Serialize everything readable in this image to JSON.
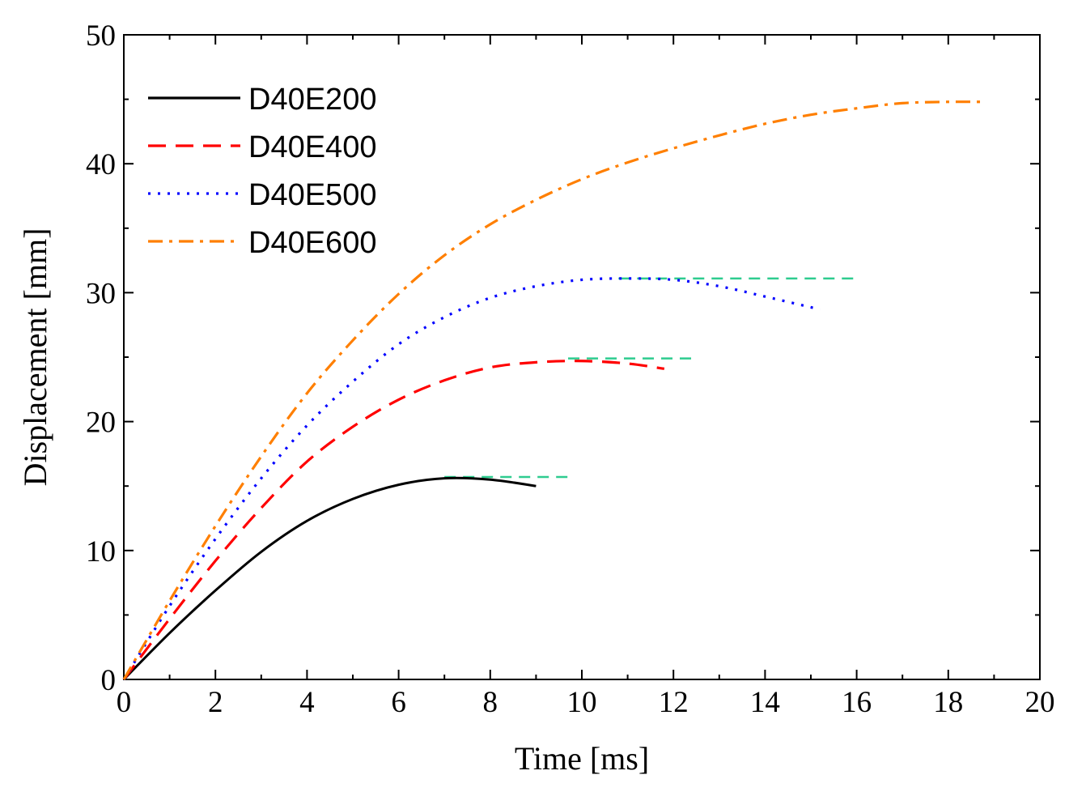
{
  "chart_data": {
    "type": "line",
    "title": "",
    "xlabel": "Time [ms]",
    "ylabel": "Displacement [mm]",
    "xlim": [
      0,
      20
    ],
    "ylim": [
      0,
      50
    ],
    "x_ticks": [
      "0",
      "2",
      "4",
      "6",
      "8",
      "10",
      "12",
      "14",
      "16",
      "18",
      "20"
    ],
    "y_ticks": [
      "0",
      "10",
      "20",
      "30",
      "40",
      "50"
    ],
    "grid": false,
    "legend_position": "top-left",
    "series": [
      {
        "name": "D40E200",
        "color": "#000000",
        "style": "solid",
        "points": [
          [
            0,
            0
          ],
          [
            1,
            3.6
          ],
          [
            2,
            6.9
          ],
          [
            3,
            9.9
          ],
          [
            4,
            12.3
          ],
          [
            5,
            14.0
          ],
          [
            6,
            15.1
          ],
          [
            7,
            15.6
          ],
          [
            8,
            15.5
          ],
          [
            9,
            15.0
          ]
        ]
      },
      {
        "name": "D40E400",
        "color": "#ff0000",
        "style": "dashed",
        "points": [
          [
            0,
            0
          ],
          [
            1,
            4.7
          ],
          [
            2,
            9.2
          ],
          [
            3,
            13.3
          ],
          [
            4,
            16.9
          ],
          [
            5,
            19.6
          ],
          [
            6,
            21.7
          ],
          [
            7,
            23.2
          ],
          [
            8,
            24.2
          ],
          [
            9,
            24.6
          ],
          [
            10,
            24.7
          ],
          [
            11,
            24.5
          ],
          [
            11.8,
            24.1
          ]
        ]
      },
      {
        "name": "D40E500",
        "color": "#0000ff",
        "style": "dotted",
        "points": [
          [
            0,
            0
          ],
          [
            1,
            5.7
          ],
          [
            2,
            10.9
          ],
          [
            3,
            15.6
          ],
          [
            4,
            19.7
          ],
          [
            5,
            23.1
          ],
          [
            6,
            26.0
          ],
          [
            7,
            28.1
          ],
          [
            8,
            29.6
          ],
          [
            9,
            30.5
          ],
          [
            10,
            31.0
          ],
          [
            11,
            31.1
          ],
          [
            12,
            31.0
          ],
          [
            13,
            30.5
          ],
          [
            14,
            29.7
          ],
          [
            15.2,
            28.7
          ]
        ]
      },
      {
        "name": "D40E600",
        "color": "#ff7f00",
        "style": "dashdot",
        "points": [
          [
            0,
            0
          ],
          [
            1,
            6.1
          ],
          [
            2,
            11.9
          ],
          [
            3,
            17.3
          ],
          [
            4,
            22.2
          ],
          [
            5,
            26.3
          ],
          [
            6,
            29.9
          ],
          [
            7,
            32.9
          ],
          [
            8,
            35.3
          ],
          [
            9,
            37.2
          ],
          [
            10,
            38.8
          ],
          [
            11,
            40.1
          ],
          [
            12,
            41.2
          ],
          [
            13,
            42.2
          ],
          [
            14,
            43.1
          ],
          [
            15,
            43.8
          ],
          [
            16,
            44.3
          ],
          [
            17,
            44.7
          ],
          [
            18,
            44.8
          ],
          [
            18.7,
            44.8
          ]
        ]
      }
    ],
    "reference_lines": [
      {
        "color": "#2ecc8f",
        "style": "dashed",
        "y": 15.7,
        "x": [
          7.0,
          9.7
        ]
      },
      {
        "color": "#2ecc8f",
        "style": "dashed",
        "y": 24.9,
        "x": [
          9.7,
          12.4
        ]
      },
      {
        "color": "#2ecc8f",
        "style": "dashed",
        "y": 31.1,
        "x": [
          10.8,
          16.0
        ]
      }
    ]
  }
}
